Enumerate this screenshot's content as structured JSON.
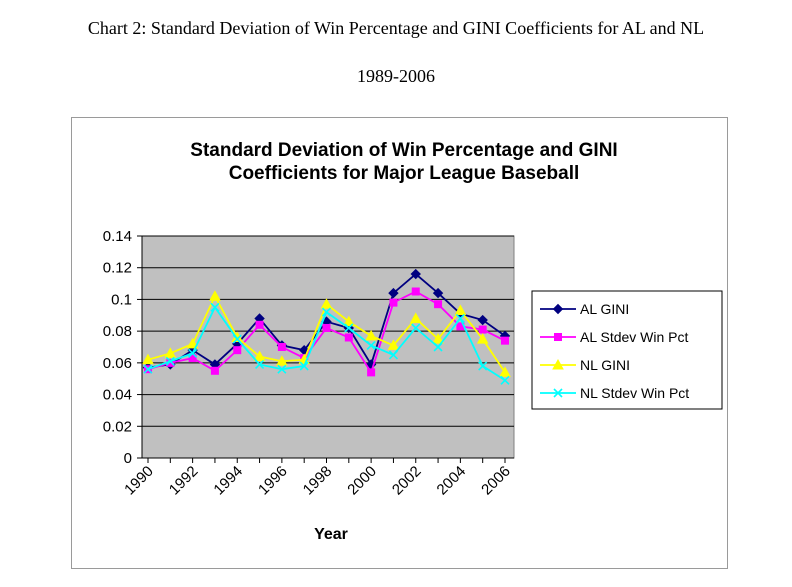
{
  "document": {
    "caption_line1": "Chart 2: Standard Deviation of Win Percentage and GINI Coefficients for AL and NL",
    "caption_line2": "1989-2006"
  },
  "chart_data": {
    "type": "line",
    "title_line1": "Standard Deviation of Win Percentage and GINI",
    "title_line2": "Coefficients for Major League Baseball",
    "xlabel": "Year",
    "ylabel": "",
    "ylim": [
      0,
      0.14
    ],
    "yticks": [
      "0",
      "0.02",
      "0.04",
      "0.06",
      "0.08",
      "0.1",
      "0.12",
      "0.14"
    ],
    "ytick_values": [
      0,
      0.02,
      0.04,
      0.06,
      0.08,
      0.1,
      0.12,
      0.14
    ],
    "x": [
      1990,
      1991,
      1992,
      1993,
      1994,
      1995,
      1996,
      1997,
      1998,
      1999,
      2000,
      2001,
      2002,
      2003,
      2004,
      2005,
      2006
    ],
    "xtick_labels": [
      "1990",
      "1992",
      "1994",
      "1996",
      "1998",
      "2000",
      "2002",
      "2004",
      "2006"
    ],
    "xtick_values": [
      1990,
      1992,
      1994,
      1996,
      1998,
      2000,
      2002,
      2004,
      2006
    ],
    "plot_background": "#c0c0c0",
    "legend_position": "right",
    "series": [
      {
        "name": "AL GINI",
        "color": "#000080",
        "marker": "diamond",
        "values": [
          0.057,
          0.059,
          0.068,
          0.059,
          0.072,
          0.088,
          0.071,
          0.068,
          0.086,
          0.082,
          0.059,
          0.104,
          0.116,
          0.104,
          0.091,
          0.087,
          0.077
        ]
      },
      {
        "name": "AL Stdev Win Pct",
        "color": "#ff00ff",
        "marker": "square",
        "values": [
          0.056,
          0.06,
          0.063,
          0.055,
          0.068,
          0.084,
          0.07,
          0.063,
          0.082,
          0.076,
          0.054,
          0.098,
          0.105,
          0.097,
          0.083,
          0.081,
          0.074
        ]
      },
      {
        "name": "NL GINI",
        "color": "#ffff00",
        "marker": "triangle",
        "values": [
          0.062,
          0.066,
          0.072,
          0.102,
          0.076,
          0.064,
          0.061,
          0.062,
          0.097,
          0.086,
          0.077,
          0.071,
          0.088,
          0.075,
          0.093,
          0.075,
          0.054
        ]
      },
      {
        "name": "NL Stdev Win Pct",
        "color": "#00ffff",
        "marker": "x",
        "values": [
          0.056,
          0.061,
          0.066,
          0.095,
          0.075,
          0.059,
          0.056,
          0.058,
          0.092,
          0.082,
          0.071,
          0.065,
          0.082,
          0.07,
          0.088,
          0.058,
          0.049
        ]
      }
    ]
  }
}
